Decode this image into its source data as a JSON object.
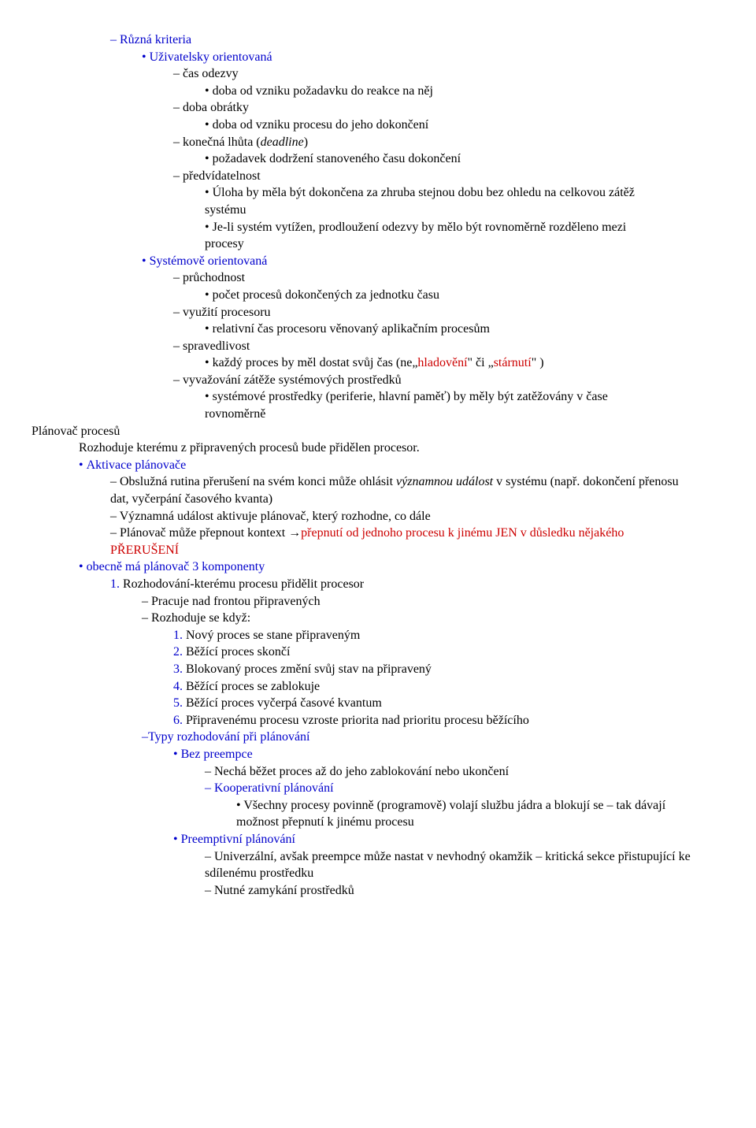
{
  "colors": {
    "blue": "#0000cc",
    "red": "#cc0000",
    "black": "#000000"
  },
  "t": {
    "ruzna": "Různá kriteria",
    "uziv": "Uživatelsky orientovaná",
    "casOdezvy": "čas odezvy",
    "dobaOdVzniku": "doba od vzniku požadavku do reakce na něj",
    "dobaObratky": "doba obrátky",
    "dobaOdVznikuProc": "doba od vzniku procesu do jeho dokončení",
    "konecnaLhuta": "konečná lhůta (",
    "deadline": "deadline",
    "konecnaLhutaEnd": ")",
    "pozadavek": "požadavek dodržení stanoveného času dokončení",
    "predvid": "předvídatelnost",
    "uloha": "Úloha by měla být dokončena za zhruba stejnou dobu bez ohledu na celkovou zátěž systému",
    "jeli": "Je-li systém vytížen, prodloužení odezvy by mělo být rovnoměrně rozděleno mezi procesy",
    "systemove": "Systémově orientovaná",
    "pruchodnost": "průchodnost",
    "pocetProc": "počet procesů dokončených za jednotku času",
    "vyuziti": "využití procesoru",
    "relativni": "relativní čas procesoru věnovaný aplikačním  procesům",
    "spravedlivost": "spravedlivost",
    "kazdy1": "každý proces by měl dostat svůj čas (ne„",
    "hladoveni": "hladovění",
    "kazdy2": "\" či „",
    "starnuti": "stárnutí",
    "kazdy3": "\" )",
    "vyvazovani": "vyvažování zátěže systémových prostředků",
    "systemoveProst": "systémové prostředky (periferie, hlavní paměť) by měly být zatěžovány v čase rovnoměrně",
    "planovac": "Plánovač procesů",
    "rozhoduje": "Rozhoduje kterému z připravených procesů bude přidělen procesor.",
    "aktivace": "Aktivace plánovače",
    "obsluzna1": "Obslužná rutina přerušení na svém konci může ohlásit ",
    "vyznamnou": "významnou událost",
    "obsluzna2": " v systému (např. dokončení přenosu dat, vyčerpání časového kvanta)",
    "vyznamna": "Významná událost aktivuje plánovač, který rozhodne, co dále",
    "planovacMuze1": "Plánovač může přepnout kontext →",
    "planovacMuze2": "přepnutí od jednoho procesu k jinému JEN v důsledku nějakého PŘERUŠENÍ",
    "obecne": "obecně má plánovač 3 komponenty",
    "n1": "1. ",
    "rozhodovani": "Rozhodování-kterému procesu přidělit procesor",
    "pracuje": "Pracuje nad frontou připravených",
    "rozhodujeSe": "Rozhoduje se když:",
    "r1n": "1. ",
    "r1": "Nový proces se stane připraveným",
    "r2n": "2. ",
    "r2": "Běžící proces skončí",
    "r3n": "3. ",
    "r3": "Blokovaný proces změní svůj stav na připravený",
    "r4n": "4. ",
    "r4": "Běžící proces se zablokuje",
    "r5n": "5. ",
    "r5": "Běžící proces vyčerpá časové kvantum",
    "r6n": "6. ",
    "r6": "Připravenému procesu vzroste priorita nad prioritu procesu běžícího",
    "typy": "Typy rozhodování při plánování",
    "bez": "Bez preempce",
    "necha": "Nechá běžet proces až do jeho zablokování nebo ukončení",
    "koop": "Kooperativní plánování",
    "vsechny": "Všechny procesy povinně (programově) volají službu jádra a blokují se  – tak dávají možnost přepnutí k jinému procesu",
    "preempt": "Preemptivní plánování",
    "univerz": "Univerzální, avšak preempce může nastat v nevhodný okamžik – kritická sekce přistupující ke sdílenému prostředku",
    "nutne": "Nutné zamykání prostředků"
  }
}
